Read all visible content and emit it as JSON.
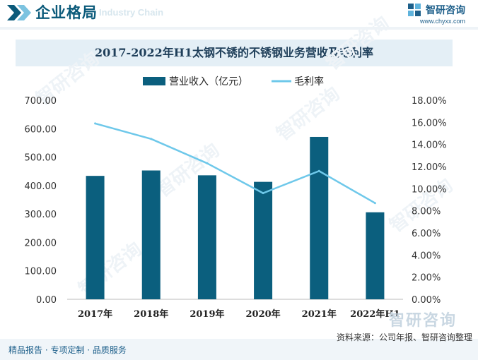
{
  "header": {
    "title": "企业格局",
    "subtitle": "Industry Chain",
    "brand_name": "智研咨询",
    "brand_url": "www.chyxx.com"
  },
  "watermark": "智研咨询",
  "colors": {
    "bar": "#0b5f7e",
    "line": "#6ec8ea",
    "title_bg": "#e4eff6"
  },
  "chart_data": {
    "type": "bar",
    "title": "2017-2022年H1太钢不锈的不锈钢业务营收及毛利率",
    "categories": [
      "2017年",
      "2018年",
      "2019年",
      "2020年",
      "2021年",
      "2022年H1"
    ],
    "series": [
      {
        "name": "营业收入（亿元）",
        "type": "bar",
        "axis": "left",
        "values": [
          434,
          453,
          436,
          413,
          571,
          306
        ]
      },
      {
        "name": "毛利率",
        "type": "line",
        "axis": "right",
        "values": [
          15.9,
          14.5,
          12.3,
          9.6,
          11.6,
          8.7
        ]
      }
    ],
    "y_left": {
      "min": 0,
      "max": 700,
      "step": 100,
      "tick_labels": [
        "0.00",
        "100.00",
        "200.00",
        "300.00",
        "400.00",
        "500.00",
        "600.00",
        "700.00"
      ]
    },
    "y_right": {
      "min": 0,
      "max": 18,
      "step": 2,
      "tick_labels": [
        "0.00%",
        "2.00%",
        "4.00%",
        "6.00%",
        "8.00%",
        "10.00%",
        "12.00%",
        "14.00%",
        "16.00%",
        "18.00%"
      ]
    },
    "legend_position": "top-center",
    "grid": false
  },
  "footer": {
    "left_text": "精品报告 · 专项定制 · 品质服务",
    "source": "资料来源：公司年报、智研咨询整理"
  }
}
